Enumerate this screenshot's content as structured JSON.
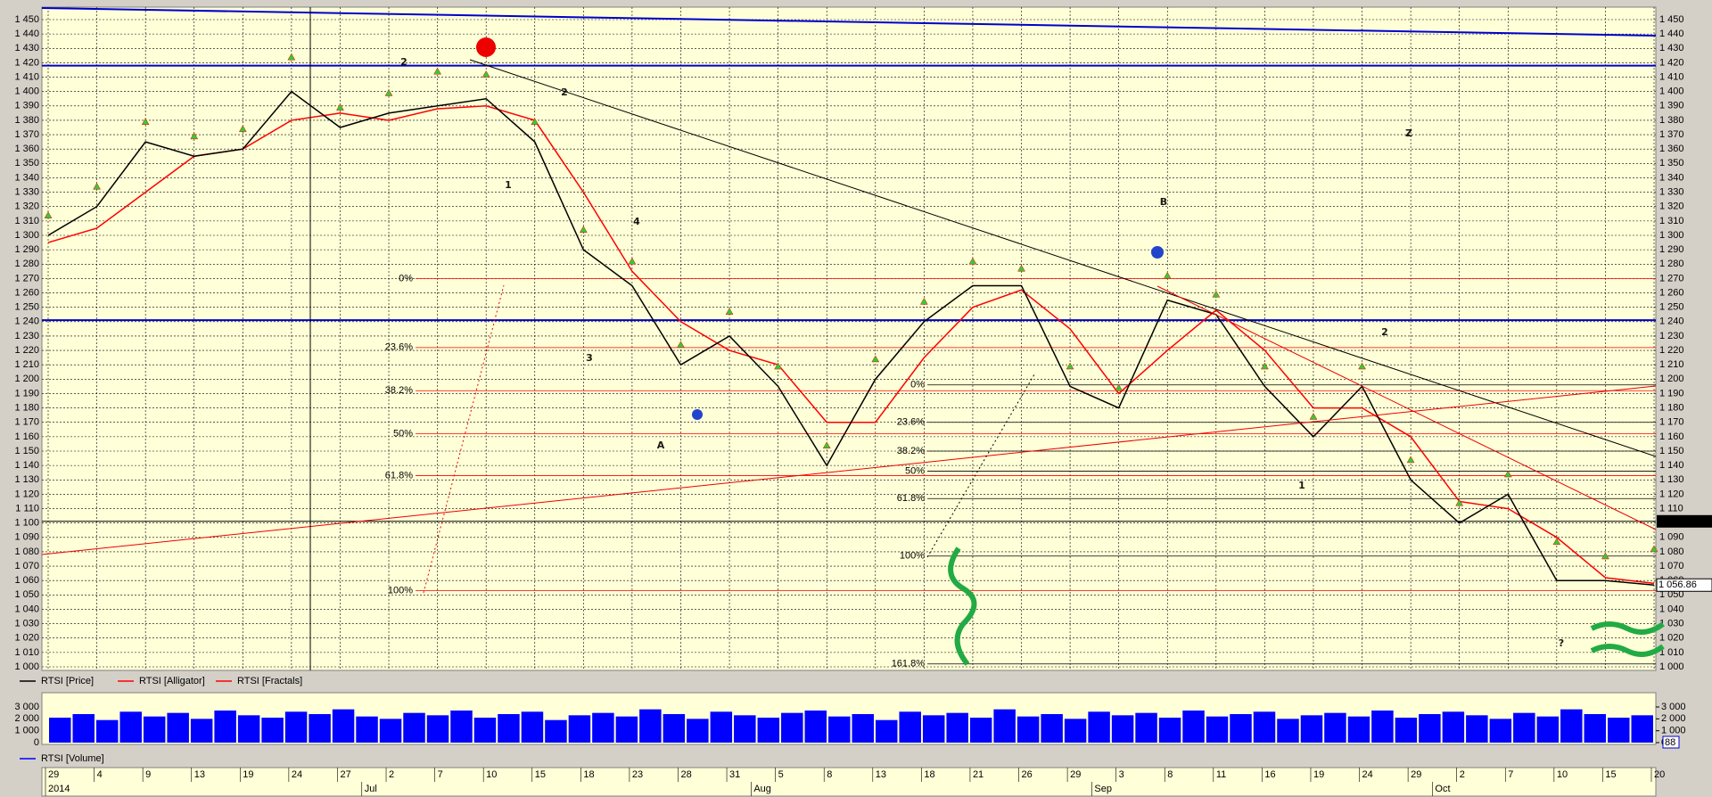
{
  "chart_data": [
    {
      "type": "line",
      "categories": [
        "29",
        "4",
        "9",
        "13",
        "19",
        "24",
        "27",
        "2",
        "7",
        "10",
        "15",
        "18",
        "23",
        "28",
        "31",
        "5",
        "8",
        "13",
        "18",
        "21",
        "26",
        "29",
        "3",
        "8",
        "11",
        "16",
        "19",
        "24",
        "29",
        "2",
        "7",
        "10",
        "15",
        "20"
      ],
      "months": [
        "2014",
        "Jul",
        "Aug",
        "Sep",
        "Oct"
      ],
      "series": [
        {
          "name": "RTSI [Price]",
          "color": "#000000",
          "values": [
            1300,
            1320,
            1365,
            1355,
            1360,
            1400,
            1375,
            1385,
            1390,
            1395,
            1365,
            1290,
            1265,
            1210,
            1230,
            1195,
            1140,
            1200,
            1240,
            1265,
            1265,
            1195,
            1180,
            1255,
            1245,
            1195,
            1160,
            1195,
            1130,
            1100,
            1120,
            1060,
            1060,
            1056.86
          ],
          "last_label": "1 056.86"
        },
        {
          "name": "RTSI [Alligator]",
          "color": "#ff0000",
          "values": [
            1295,
            1305,
            1330,
            1355,
            1360,
            1380,
            1385,
            1380,
            1388,
            1390,
            1380,
            1330,
            1275,
            1240,
            1220,
            1210,
            1170,
            1170,
            1215,
            1250,
            1262,
            1235,
            1190,
            1220,
            1248,
            1220,
            1180,
            1180,
            1160,
            1115,
            1110,
            1090,
            1062,
            1058
          ]
        },
        {
          "name": "RTSI [Fractals]",
          "color": "#ff0000",
          "values": [
            1312,
            1332,
            1377,
            1367,
            1372,
            1422,
            1387,
            1397,
            1412,
            1410,
            1377,
            1302,
            1280,
            1222,
            1245,
            1207,
            1152,
            1212,
            1252,
            1280,
            1275,
            1207,
            1192,
            1270,
            1257,
            1207,
            1172,
            1207,
            1142,
            1112,
            1132,
            1085,
            1075,
            1080
          ]
        }
      ],
      "ylim": [
        1000,
        1450
      ],
      "yticks": [
        {
          "value": 1000,
          "label": "1 000"
        },
        {
          "value": 1010,
          "label": "1 010"
        },
        {
          "value": 1020,
          "label": "1 020"
        },
        {
          "value": 1030,
          "label": "1 030"
        },
        {
          "value": 1040,
          "label": "1 040"
        },
        {
          "value": 1050,
          "label": "1 050"
        },
        {
          "value": 1060,
          "label": "1 060"
        },
        {
          "value": 1070,
          "label": "1 070"
        },
        {
          "value": 1080,
          "label": "1 080"
        },
        {
          "value": 1090,
          "label": "1 090"
        },
        {
          "value": 1100,
          "label": "1 100"
        },
        {
          "value": 1110,
          "label": "1 110"
        },
        {
          "value": 1120,
          "label": "1 120"
        },
        {
          "value": 1130,
          "label": "1 130"
        },
        {
          "value": 1140,
          "label": "1 140"
        },
        {
          "value": 1150,
          "label": "1 150"
        },
        {
          "value": 1160,
          "label": "1 160"
        },
        {
          "value": 1170,
          "label": "1 170"
        },
        {
          "value": 1180,
          "label": "1 180"
        },
        {
          "value": 1190,
          "label": "1 190"
        },
        {
          "value": 1200,
          "label": "1 200"
        },
        {
          "value": 1210,
          "label": "1 210"
        },
        {
          "value": 1220,
          "label": "1 220"
        },
        {
          "value": 1230,
          "label": "1 230"
        },
        {
          "value": 1240,
          "label": "1 240"
        },
        {
          "value": 1250,
          "label": "1 250"
        },
        {
          "value": 1260,
          "label": "1 260"
        },
        {
          "value": 1270,
          "label": "1 270"
        },
        {
          "value": 1280,
          "label": "1 280"
        },
        {
          "value": 1290,
          "label": "1 290"
        },
        {
          "value": 1300,
          "label": "1 300"
        },
        {
          "value": 1310,
          "label": "1 310"
        },
        {
          "value": 1320,
          "label": "1 320"
        },
        {
          "value": 1330,
          "label": "1 330"
        },
        {
          "value": 1340,
          "label": "1 340"
        },
        {
          "value": 1350,
          "label": "1 350"
        },
        {
          "value": 1360,
          "label": "1 360"
        },
        {
          "value": 1370,
          "label": "1 370"
        },
        {
          "value": 1380,
          "label": "1 380"
        },
        {
          "value": 1390,
          "label": "1 390"
        },
        {
          "value": 1400,
          "label": "1 400"
        },
        {
          "value": 1410,
          "label": "1 410"
        },
        {
          "value": 1420,
          "label": "1 420"
        },
        {
          "value": 1430,
          "label": "1 430"
        },
        {
          "value": 1440,
          "label": "1 440"
        },
        {
          "value": 1450,
          "label": "1 450"
        }
      ],
      "grid": true,
      "hlines": [
        1418,
        1241
      ],
      "level": 1101.1695,
      "fib_sets": [
        {
          "labels": [
            "0%",
            "23.6%",
            "38.2%",
            "50%",
            "61.8%",
            "100%"
          ],
          "levels": [
            1270,
            1222,
            1192,
            1162,
            1133,
            1053
          ],
          "color": "#ff0000"
        },
        {
          "labels": [
            "0%",
            "23.6%",
            "38.2%",
            "50%",
            "61.8%",
            "100%",
            "161.8%"
          ],
          "levels": [
            1196,
            1170,
            1150,
            1136,
            1117,
            1077,
            1002
          ],
          "color": "#000000"
        }
      ],
      "annotations": [
        "2",
        "2",
        "1",
        "4",
        "3",
        "A",
        "B",
        "2",
        "1",
        "Z",
        "?"
      ]
    },
    {
      "type": "bar",
      "series": [
        {
          "name": "RTSI [Volume]",
          "color": "#0000ff",
          "values": [
            2100,
            2400,
            1900,
            2600,
            2200,
            2500,
            2000,
            2700,
            2300,
            2100,
            2600,
            2400,
            2800,
            2200,
            2000,
            2500,
            2300,
            2700,
            2100,
            2400,
            2600,
            1900,
            2300,
            2500,
            2200,
            2800,
            2400,
            2000,
            2600,
            2300,
            2100,
            2500,
            2700,
            2200,
            2400,
            1900,
            2600,
            2300,
            2500,
            2100,
            2800,
            2200,
            2400,
            2000,
            2600,
            2300,
            2500,
            2100,
            2700,
            2200,
            2400,
            2600,
            2000,
            2300,
            2500,
            2200,
            2700,
            2100,
            2400,
            2600,
            2300,
            2000,
            2500,
            2200,
            2800,
            2400,
            2100,
            2300
          ]
        }
      ],
      "ylim": [
        0,
        3750
      ],
      "yticks": [
        0,
        {
          "value": 1000,
          "label": "1 000"
        },
        {
          "value": 2000,
          "label": "2 000"
        },
        {
          "value": 3000,
          "label": "3 000"
        }
      ],
      "scale_label": "88"
    }
  ]
}
